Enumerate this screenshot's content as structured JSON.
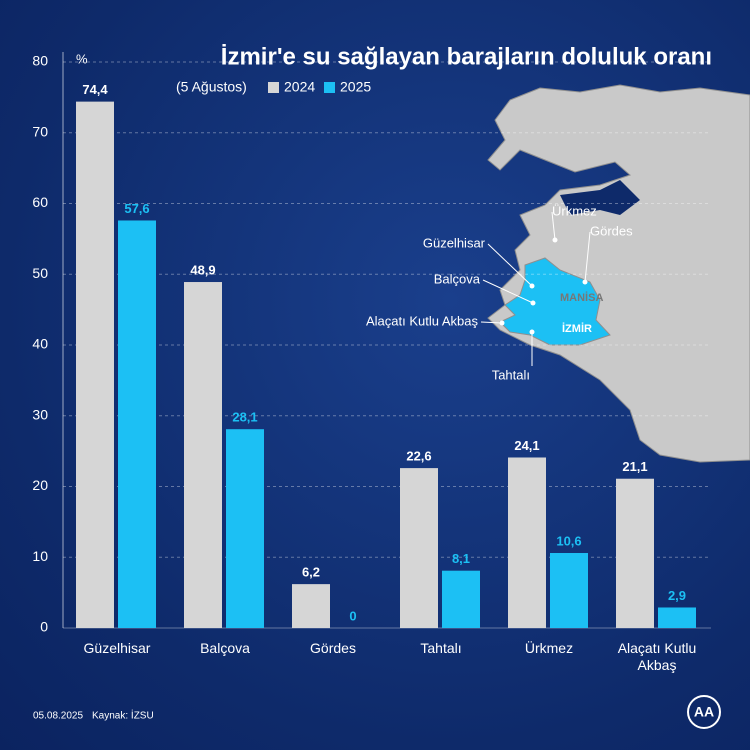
{
  "chart_data": {
    "type": "bar",
    "title": "İzmir'e su sağlayan barajların doluluk oranı",
    "subtitle": "(5 Ağustos)",
    "y_label": "%",
    "categories": [
      "Güzelhisar",
      "Balçova",
      "Gördes",
      "Tahtalı",
      "Ürkmez",
      "Alaçatı Kutlu Akbaş"
    ],
    "series": [
      {
        "name": "2024",
        "color": "#d6d6d6",
        "values": [
          74.4,
          48.9,
          6.2,
          22.6,
          24.1,
          21.1
        ],
        "value_labels": [
          "74,4",
          "48,9",
          "6,2",
          "22,6",
          "24,1",
          "21,1"
        ]
      },
      {
        "name": "2025",
        "color": "#1cc0f4",
        "values": [
          57.6,
          28.1,
          0,
          8.1,
          10.6,
          2.9
        ],
        "value_labels": [
          "57,6",
          "28,1",
          "0",
          "8,1",
          "10,6",
          "2,9"
        ]
      }
    ],
    "ylim": [
      0,
      80
    ],
    "yticks": [
      0,
      10,
      20,
      30,
      40,
      50,
      60,
      70,
      80
    ],
    "grid": true,
    "map_labels": [
      "Ürkmez",
      "Gördes",
      "Güzelhisar",
      "Balçova",
      "MANİSA",
      "Alaçatı Kutlu Akbaş",
      "İZMİR",
      "Tahtalı"
    ],
    "date": "05.08.2025",
    "source": "Kaynak: İZSU",
    "logo": "AA"
  }
}
